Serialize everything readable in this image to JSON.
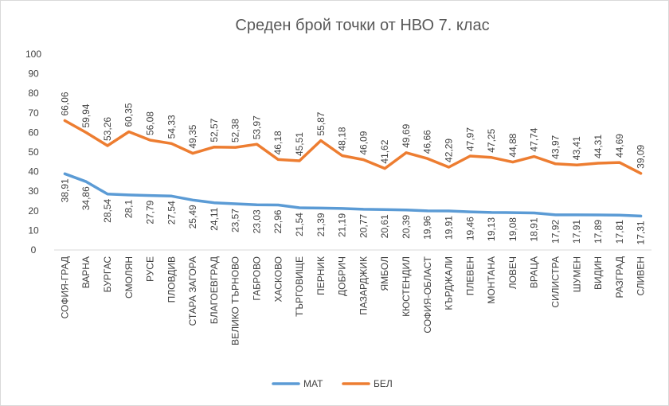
{
  "chart_data": {
    "type": "line",
    "title": "Среден брой точки от НВО 7. клас",
    "xlabel": "",
    "ylabel": "",
    "ylim": [
      0,
      100
    ],
    "yticks": [
      0,
      10,
      20,
      30,
      40,
      50,
      60,
      70,
      80,
      90,
      100
    ],
    "grid": false,
    "legend_position": "bottom",
    "categories": [
      "СОФИЯ-ГРАД",
      "ВАРНА",
      "БУРГАС",
      "СМОЛЯН",
      "РУСЕ",
      "ПЛОВДИВ",
      "СТАРА ЗАГОРА",
      "БЛАГОЕВГРАД",
      "ВЕЛИКО ТЪРНОВО",
      "ГАБРОВО",
      "ХАСКОВО",
      "ТЪРГОВИЩЕ",
      "ПЕРНИК",
      "ДОБРИЧ",
      "ПАЗАРДЖИК",
      "ЯМБОЛ",
      "КЮСТЕНДИЛ",
      "СОФИЯ-ОБЛАСТ",
      "КЪРДЖАЛИ",
      "ПЛЕВЕН",
      "МОНТАНА",
      "ЛОВЕЧ",
      "ВРАЦА",
      "СИЛИСТРА",
      "ШУМЕН",
      "ВИДИН",
      "РАЗГРАД",
      "СЛИВЕН"
    ],
    "series": [
      {
        "name": "МАТ",
        "color": "#5b9bd5",
        "values": [
          38.91,
          34.86,
          28.54,
          28.1,
          27.79,
          27.54,
          25.49,
          24.11,
          23.57,
          23.03,
          22.96,
          21.54,
          21.39,
          21.19,
          20.77,
          20.61,
          20.39,
          19.96,
          19.91,
          19.46,
          19.13,
          19.08,
          18.91,
          17.92,
          17.91,
          17.89,
          17.81,
          17.31
        ],
        "labels": [
          "38,91",
          "34,86",
          "28,54",
          "28,1",
          "27,79",
          "27,54",
          "25,49",
          "24,11",
          "23,57",
          "23,03",
          "22,96",
          "21,54",
          "21,39",
          "21,19",
          "20,77",
          "20,61",
          "20,39",
          "19,96",
          "19,91",
          "19,46",
          "19,13",
          "19,08",
          "18,91",
          "17,92",
          "17,91",
          "17,89",
          "17,81",
          "17,31"
        ]
      },
      {
        "name": "БЕЛ",
        "color": "#ed7d31",
        "values": [
          66.06,
          59.94,
          53.26,
          60.35,
          56.08,
          54.33,
          49.35,
          52.57,
          52.38,
          53.97,
          46.18,
          45.51,
          55.87,
          48.18,
          46.09,
          41.62,
          49.69,
          46.66,
          42.29,
          47.97,
          47.25,
          44.88,
          47.74,
          43.97,
          43.41,
          44.31,
          44.69,
          39.09
        ],
        "labels": [
          "66,06",
          "59,94",
          "53,26",
          "60,35",
          "56,08",
          "54,33",
          "49,35",
          "52,57",
          "52,38",
          "53,97",
          "46,18",
          "45,51",
          "55,87",
          "48,18",
          "46,09",
          "41,62",
          "49,69",
          "46,66",
          "42,29",
          "47,97",
          "47,25",
          "44,88",
          "47,74",
          "43,97",
          "43,41",
          "44,31",
          "44,69",
          "39,09"
        ]
      }
    ]
  }
}
